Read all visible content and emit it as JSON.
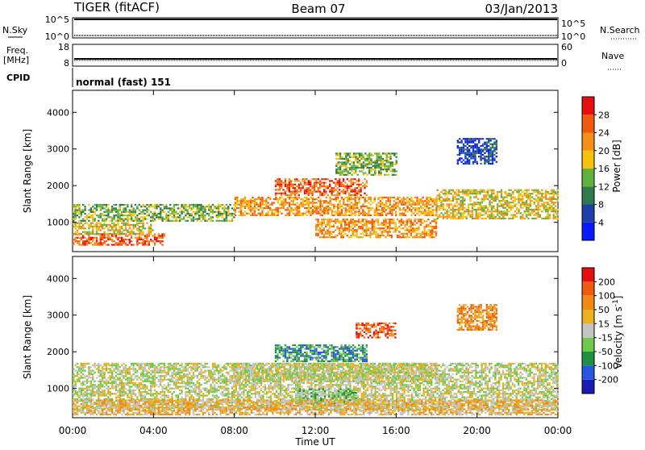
{
  "header": {
    "title": "TIGER (fitACF)",
    "beam": "Beam 07",
    "date": "03/Jan/2013"
  },
  "panels": {
    "nsky": {
      "label": "N.Sky",
      "ticks": [
        "10^5",
        "10^0"
      ]
    },
    "nsearch": {
      "label": "N.Search",
      "ticks": [
        "10^5",
        "10^0"
      ]
    },
    "freq": {
      "label_line1": "Freq.",
      "label_line2": "[MHz]",
      "ticks": [
        "18",
        "8"
      ]
    },
    "nave": {
      "label": "Nave",
      "ticks": [
        "60",
        "0"
      ]
    },
    "cpid": {
      "label": "CPID",
      "value": "normal (fast) 151"
    }
  },
  "chart_data": [
    {
      "type": "heatmap",
      "name": "power",
      "ylabel": "Slant Range [km]",
      "xlabel": "",
      "ylim": [
        200,
        4600
      ],
      "y_ticks": [
        1000,
        2000,
        3000,
        4000
      ],
      "x_ticks": [
        "00:00",
        "04:00",
        "08:00",
        "12:00",
        "16:00",
        "20:00",
        "00:00"
      ],
      "colorbar": {
        "label": "Power [dB]",
        "ticks": [
          "4",
          "8",
          "12",
          "16",
          "20",
          "24",
          "28"
        ],
        "colors": [
          "#0a1aff",
          "#1f3fa8",
          "#2e7a4a",
          "#62b040",
          "#f6c20d",
          "#f39019",
          "#ef5a10",
          "#e50f0f"
        ]
      },
      "regions": [
        {
          "t0": 0,
          "t1": 4.5,
          "r0": 400,
          "r1": 700,
          "level": 6
        },
        {
          "t0": 0,
          "t1": 4,
          "r0": 700,
          "r1": 1000,
          "level": 4
        },
        {
          "t0": 0,
          "t1": 8,
          "r0": 1050,
          "r1": 1500,
          "level": 3
        },
        {
          "t0": 8,
          "t1": 18,
          "r0": 1200,
          "r1": 1700,
          "level": 5
        },
        {
          "t0": 10,
          "t1": 14.5,
          "r0": 1750,
          "r1": 2200,
          "level": 6
        },
        {
          "t0": 12,
          "t1": 18,
          "r0": 600,
          "r1": 1100,
          "level": 5
        },
        {
          "t0": 18,
          "t1": 24,
          "r0": 1100,
          "r1": 1900,
          "level": 4
        },
        {
          "t0": 13,
          "t1": 16,
          "r0": 2300,
          "r1": 2900,
          "level": 3
        },
        {
          "t0": 19,
          "t1": 21,
          "r0": 2600,
          "r1": 3300,
          "level": 1
        }
      ]
    },
    {
      "type": "heatmap",
      "name": "velocity",
      "ylabel": "Slant Range [km]",
      "xlabel": "Time UT",
      "ylim": [
        200,
        4600
      ],
      "y_ticks": [
        1000,
        2000,
        3000,
        4000
      ],
      "x_ticks": [
        "00:00",
        "04:00",
        "08:00",
        "12:00",
        "16:00",
        "20:00",
        "00:00"
      ],
      "colorbar": {
        "label": "Velocity [m s^-1]",
        "ticks": [
          "200",
          "100",
          "50",
          "15",
          "-15",
          "-50",
          "-100",
          "-200"
        ],
        "colors": [
          "#1a1ab4",
          "#2656e0",
          "#1f8f44",
          "#6ec84a",
          "#c4c4c4",
          "#e9b021",
          "#ef8a16",
          "#ef5a10",
          "#e50f0f"
        ]
      },
      "regions": [
        {
          "t0": 0,
          "t1": 24,
          "r0": 400,
          "r1": 1700,
          "level": 4
        },
        {
          "t0": 10,
          "t1": 14.5,
          "r0": 1750,
          "r1": 2200,
          "level": 2
        },
        {
          "t0": 8,
          "t1": 18,
          "r0": 1200,
          "r1": 1700,
          "level": 4
        },
        {
          "t0": 11,
          "t1": 14,
          "r0": 600,
          "r1": 1000,
          "level": 3
        },
        {
          "t0": 0,
          "t1": 24,
          "r0": 300,
          "r1": 700,
          "level": 5
        },
        {
          "t0": 14,
          "t1": 16,
          "r0": 2400,
          "r1": 2800,
          "level": 7
        },
        {
          "t0": 19,
          "t1": 21,
          "r0": 2600,
          "r1": 3300,
          "level": 6
        }
      ]
    }
  ],
  "colors": {
    "frame": "#000000",
    "gap": "#ffffff",
    "light": "#c8c8c8"
  }
}
